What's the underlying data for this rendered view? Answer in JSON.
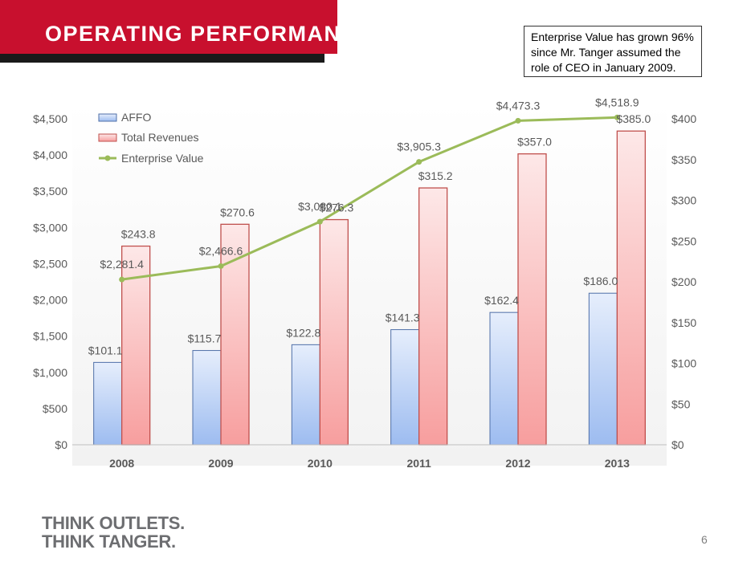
{
  "header": {
    "title": "OPERATING PERFORMANCE"
  },
  "note": {
    "text": "Enterprise Value has grown 96% since Mr. Tanger assumed the role of CEO in January 2009."
  },
  "footer": {
    "logo_line1": "THINK OUTLETS.",
    "logo_line2": "THINK TANGER.",
    "page_number": "6"
  },
  "colors": {
    "brand_red": "#c8102e",
    "affo_fill_top": "#e6eefc",
    "affo_fill_bottom": "#9dbcf0",
    "affo_stroke": "#4f6fa8",
    "rev_fill_top": "#fde8e8",
    "rev_fill_bottom": "#f79e9e",
    "rev_stroke": "#c0504d",
    "ev_line": "#9bbb59"
  },
  "chart_data": {
    "type": "bar",
    "categories": [
      "2008",
      "2009",
      "2010",
      "2011",
      "2012",
      "2013"
    ],
    "series": [
      {
        "name": "AFFO",
        "type": "bar",
        "axis": "right",
        "values": [
          101.1,
          115.7,
          122.8,
          141.3,
          162.4,
          186.0
        ],
        "labels": [
          "$101.1",
          "$115.7",
          "$122.8",
          "$141.3",
          "$162.4",
          "$186.0"
        ]
      },
      {
        "name": "Total Revenues",
        "type": "bar",
        "axis": "right",
        "values": [
          243.8,
          270.6,
          276.3,
          315.2,
          357.0,
          385.0
        ],
        "labels": [
          "$243.8",
          "$270.6",
          "$276.3",
          "$315.2",
          "$357.0",
          "$385.0"
        ]
      },
      {
        "name": "Enterprise Value",
        "type": "line",
        "axis": "left",
        "values": [
          2281.4,
          2466.6,
          3080.1,
          3905.3,
          4473.3,
          4518.9
        ],
        "labels": [
          "$2,281.4",
          "$2,466.6",
          "$3,080.1",
          "$3,905.3",
          "$4,473.3",
          "$4,518.9"
        ]
      }
    ],
    "left_axis": {
      "ylim": [
        0,
        4500
      ],
      "ticks": [
        0,
        500,
        1000,
        1500,
        2000,
        2500,
        3000,
        3500,
        4000,
        4500
      ],
      "tick_labels": [
        "$0",
        "$500",
        "$1,000",
        "$1,500",
        "$2,000",
        "$2,500",
        "$3,000",
        "$3,500",
        "$4,000",
        "$4,500"
      ]
    },
    "right_axis": {
      "ylim": [
        0,
        400
      ],
      "ticks": [
        0,
        50,
        100,
        150,
        200,
        250,
        300,
        350,
        400
      ],
      "tick_labels": [
        "$0",
        "$50",
        "$100",
        "$150",
        "$200",
        "$250",
        "$300",
        "$350",
        "$400"
      ]
    },
    "grid": false,
    "legend": "top-left",
    "title": "",
    "xlabel": "",
    "ylabel": ""
  }
}
